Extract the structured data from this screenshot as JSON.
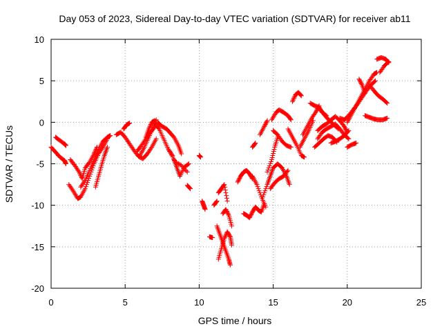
{
  "chart_data": {
    "type": "scatter",
    "title": "Day 053 of 2023, Sidereal Day-to-day VTEC variation (SDTVAR) for receiver ab11",
    "xlabel": "GPS time / hours",
    "ylabel": "SDTVAR / TECUs",
    "xlim": [
      0,
      25
    ],
    "ylim": [
      -20,
      10
    ],
    "xticks": [
      0,
      5,
      10,
      15,
      20,
      25
    ],
    "yticks": [
      -20,
      -15,
      -10,
      -5,
      0,
      5,
      10
    ],
    "grid": true,
    "marker": "+",
    "color": "#ff0000",
    "tracks": [
      [
        [
          0.0,
          -3.0
        ],
        [
          0.3,
          -3.6
        ],
        [
          0.6,
          -4.2
        ],
        [
          0.9,
          -4.6
        ],
        [
          1.0,
          -5.0
        ]
      ],
      [
        [
          0.3,
          -1.8
        ],
        [
          0.6,
          -2.2
        ],
        [
          0.9,
          -2.6
        ],
        [
          1.0,
          -2.8
        ]
      ],
      [
        [
          1.3,
          -4.5
        ],
        [
          1.6,
          -5.2
        ],
        [
          1.9,
          -6.0
        ],
        [
          2.1,
          -6.8
        ],
        [
          2.3,
          -5.5
        ],
        [
          2.6,
          -4.8
        ],
        [
          2.9,
          -3.8
        ],
        [
          3.1,
          -3.0
        ]
      ],
      [
        [
          1.2,
          -7.5
        ],
        [
          1.5,
          -8.3
        ],
        [
          1.8,
          -9.2
        ],
        [
          2.0,
          -9.0
        ],
        [
          2.3,
          -8.0
        ],
        [
          2.6,
          -6.5
        ],
        [
          2.9,
          -5.0
        ],
        [
          3.2,
          -3.8
        ],
        [
          3.5,
          -3.0
        ],
        [
          3.8,
          -2.0
        ]
      ],
      [
        [
          2.0,
          -7.8
        ],
        [
          2.3,
          -7.0
        ],
        [
          2.6,
          -5.8
        ],
        [
          2.9,
          -4.5
        ],
        [
          3.2,
          -3.3
        ],
        [
          3.5,
          -2.3
        ],
        [
          3.8,
          -1.8
        ],
        [
          4.0,
          -1.6
        ]
      ],
      [
        [
          3.0,
          -7.8
        ],
        [
          3.2,
          -6.5
        ],
        [
          3.4,
          -5.2
        ],
        [
          3.6,
          -4.0
        ],
        [
          3.8,
          -3.0
        ]
      ],
      [
        [
          4.4,
          -1.5
        ],
        [
          4.7,
          -1.2
        ],
        [
          5.0,
          -1.8
        ],
        [
          5.3,
          -2.6
        ],
        [
          5.6,
          -3.4
        ],
        [
          5.9,
          -4.1
        ],
        [
          6.2,
          -4.4
        ],
        [
          6.5,
          -3.8
        ],
        [
          6.8,
          -3.0
        ],
        [
          7.1,
          -2.0
        ]
      ],
      [
        [
          4.9,
          -0.8
        ],
        [
          5.1,
          -0.3
        ],
        [
          5.3,
          -0.1
        ]
      ],
      [
        [
          5.8,
          -3.5
        ],
        [
          6.1,
          -2.8
        ],
        [
          6.4,
          -2.0
        ],
        [
          6.7,
          -1.2
        ],
        [
          7.0,
          -0.6
        ]
      ],
      [
        [
          6.0,
          -4.0
        ],
        [
          6.3,
          -3.0
        ],
        [
          6.6,
          -1.8
        ],
        [
          6.9,
          -0.6
        ],
        [
          7.1,
          0.3
        ]
      ],
      [
        [
          6.4,
          -1.8
        ],
        [
          6.6,
          -0.8
        ],
        [
          6.8,
          0.0
        ],
        [
          7.0,
          0.2
        ]
      ],
      [
        [
          7.0,
          -0.2
        ],
        [
          7.3,
          -0.8
        ],
        [
          7.6,
          -2.0
        ],
        [
          7.9,
          -3.2
        ],
        [
          8.2,
          -4.0
        ]
      ],
      [
        [
          7.2,
          0.0
        ],
        [
          7.5,
          -0.5
        ],
        [
          7.8,
          -0.8
        ],
        [
          8.0,
          -1.2
        ],
        [
          8.3,
          -1.8
        ],
        [
          8.6,
          -2.8
        ],
        [
          8.8,
          -3.8
        ]
      ],
      [
        [
          8.3,
          -4.5
        ],
        [
          8.5,
          -5.5
        ],
        [
          8.7,
          -6.5
        ],
        [
          9.0,
          -5.4
        ],
        [
          9.3,
          -5.0
        ]
      ],
      [
        [
          8.0,
          -3.5
        ],
        [
          8.4,
          -4.8
        ],
        [
          8.8,
          -5.2
        ],
        [
          9.2,
          -6.0
        ]
      ],
      [
        [
          9.2,
          -7.6
        ],
        [
          9.4,
          -8.0
        ]
      ],
      [
        [
          10.0,
          -4.0
        ],
        [
          10.1,
          -4.2
        ]
      ],
      [
        [
          10.2,
          -9.5
        ],
        [
          10.3,
          -10.0
        ],
        [
          10.4,
          -10.5
        ]
      ],
      [
        [
          10.7,
          -13.8
        ],
        [
          10.9,
          -13.9
        ]
      ],
      [
        [
          11.0,
          -10.0
        ],
        [
          11.2,
          -9.5
        ]
      ],
      [
        [
          11.3,
          -8.5
        ],
        [
          11.5,
          -8.0
        ],
        [
          11.7,
          -7.5
        ],
        [
          11.9,
          -9.5
        ]
      ],
      [
        [
          11.2,
          -12.5
        ],
        [
          11.4,
          -13.5
        ],
        [
          11.6,
          -14.5
        ],
        [
          11.8,
          -15.5
        ],
        [
          12.0,
          -16.5
        ],
        [
          12.1,
          -17.2
        ]
      ],
      [
        [
          11.3,
          -16.5
        ],
        [
          11.5,
          -15.2
        ],
        [
          11.7,
          -14.0
        ],
        [
          11.9,
          -13.2
        ],
        [
          12.1,
          -13.8
        ],
        [
          12.2,
          -14.8
        ]
      ],
      [
        [
          11.6,
          -11.0
        ],
        [
          11.8,
          -10.5
        ],
        [
          12.0,
          -11.2
        ],
        [
          12.2,
          -12.5
        ]
      ],
      [
        [
          12.6,
          -7.2
        ],
        [
          12.8,
          -6.5
        ],
        [
          13.0,
          -6.0
        ],
        [
          13.2,
          -5.8
        ],
        [
          13.4,
          -6.2
        ],
        [
          13.6,
          -6.8
        ]
      ],
      [
        [
          13.0,
          -11.0
        ],
        [
          13.2,
          -11.2
        ],
        [
          13.4,
          -11.5
        ],
        [
          13.6,
          -10.8
        ],
        [
          13.8,
          -10.2
        ],
        [
          14.0,
          -10.6
        ],
        [
          14.2,
          -10.8
        ],
        [
          14.4,
          -9.8
        ]
      ],
      [
        [
          13.6,
          -6.5
        ],
        [
          13.9,
          -7.5
        ],
        [
          14.2,
          -9.0
        ],
        [
          14.5,
          -10.2
        ]
      ],
      [
        [
          13.6,
          -3.0
        ],
        [
          13.8,
          -2.5
        ]
      ],
      [
        [
          14.1,
          -1.5
        ],
        [
          14.4,
          -0.5
        ],
        [
          14.6,
          0.2
        ]
      ],
      [
        [
          14.3,
          -9.0
        ],
        [
          14.6,
          -7.5
        ],
        [
          14.8,
          -6.5
        ],
        [
          15.0,
          -5.5
        ],
        [
          15.3,
          -5.0
        ],
        [
          15.6,
          -5.5
        ],
        [
          15.9,
          -6.5
        ],
        [
          16.1,
          -7.5
        ]
      ],
      [
        [
          14.8,
          -8.0
        ],
        [
          15.1,
          -7.3
        ],
        [
          15.4,
          -6.8
        ],
        [
          15.7,
          -6.5
        ],
        [
          16.0,
          -5.8
        ]
      ],
      [
        [
          14.6,
          -6.0
        ],
        [
          14.9,
          -4.5
        ],
        [
          15.1,
          -3.0
        ],
        [
          15.3,
          -1.8
        ]
      ],
      [
        [
          14.9,
          0.3
        ],
        [
          15.2,
          1.2
        ],
        [
          15.4,
          1.5
        ],
        [
          15.7,
          1.2
        ],
        [
          16.0,
          0.8
        ],
        [
          16.2,
          0.3
        ]
      ],
      [
        [
          15.0,
          -1.0
        ],
        [
          15.3,
          -1.5
        ],
        [
          15.6,
          -2.3
        ],
        [
          15.9,
          -2.8
        ],
        [
          16.2,
          -3.0
        ]
      ],
      [
        [
          16.3,
          2.5
        ],
        [
          16.5,
          3.3
        ],
        [
          16.7,
          3.6
        ],
        [
          16.9,
          3.2
        ]
      ],
      [
        [
          16.0,
          -0.8
        ],
        [
          16.3,
          -1.8
        ],
        [
          16.6,
          -2.8
        ],
        [
          16.9,
          -4.0
        ],
        [
          17.1,
          -4.2
        ]
      ],
      [
        [
          16.8,
          -3.0
        ],
        [
          17.1,
          -2.0
        ],
        [
          17.4,
          -1.0
        ],
        [
          17.7,
          0.2
        ]
      ],
      [
        [
          17.0,
          -1.5
        ],
        [
          17.3,
          -0.5
        ],
        [
          17.6,
          0.5
        ],
        [
          17.9,
          1.3
        ],
        [
          18.1,
          2.0
        ]
      ],
      [
        [
          17.5,
          2.3
        ],
        [
          17.8,
          2.0
        ],
        [
          18.1,
          1.8
        ],
        [
          18.3,
          1.2
        ],
        [
          18.6,
          0.8
        ]
      ],
      [
        [
          18.0,
          -1.0
        ],
        [
          18.3,
          -0.5
        ],
        [
          18.6,
          -0.2
        ],
        [
          18.9,
          0.3
        ],
        [
          19.2,
          0.7
        ],
        [
          19.5,
          0.2
        ],
        [
          19.8,
          -0.5
        ],
        [
          20.0,
          -1.2
        ]
      ],
      [
        [
          18.0,
          -2.0
        ],
        [
          18.3,
          -1.2
        ],
        [
          18.6,
          -0.8
        ],
        [
          18.9,
          -0.5
        ],
        [
          19.2,
          -0.2
        ],
        [
          19.5,
          -0.8
        ],
        [
          19.8,
          -1.5
        ],
        [
          20.1,
          -2.0
        ]
      ],
      [
        [
          17.8,
          -3.0
        ],
        [
          18.1,
          -2.5
        ],
        [
          18.4,
          -2.0
        ],
        [
          18.7,
          -1.6
        ],
        [
          19.0,
          -1.8
        ],
        [
          19.3,
          -2.4
        ]
      ],
      [
        [
          18.2,
          1.5
        ],
        [
          18.5,
          0.8
        ],
        [
          18.8,
          0.2
        ],
        [
          19.1,
          -0.3
        ],
        [
          19.4,
          -0.8
        ]
      ],
      [
        [
          18.9,
          -2.5
        ],
        [
          19.2,
          -2.3
        ],
        [
          19.5,
          -2.0
        ],
        [
          19.8,
          -1.6
        ],
        [
          20.1,
          -1.0
        ]
      ],
      [
        [
          20.0,
          -3.0
        ],
        [
          20.3,
          -2.7
        ],
        [
          20.6,
          -2.5
        ]
      ],
      [
        [
          19.5,
          0.5
        ],
        [
          19.8,
          0.3
        ],
        [
          20.1,
          0.8
        ],
        [
          20.4,
          1.5
        ],
        [
          20.7,
          2.2
        ],
        [
          21.0,
          3.0
        ],
        [
          21.3,
          3.8
        ],
        [
          21.6,
          4.5
        ],
        [
          21.9,
          5.0
        ]
      ],
      [
        [
          20.0,
          0.0
        ],
        [
          20.3,
          1.0
        ],
        [
          20.6,
          2.0
        ],
        [
          20.9,
          3.0
        ],
        [
          21.2,
          4.0
        ],
        [
          21.5,
          5.0
        ],
        [
          21.8,
          5.8
        ],
        [
          22.0,
          6.0
        ]
      ],
      [
        [
          20.8,
          5.2
        ],
        [
          21.0,
          4.5
        ],
        [
          21.2,
          3.5
        ]
      ],
      [
        [
          21.2,
          0.8
        ],
        [
          21.5,
          0.6
        ],
        [
          21.8,
          0.4
        ],
        [
          22.1,
          0.3
        ],
        [
          22.4,
          0.3
        ],
        [
          22.7,
          0.5
        ]
      ],
      [
        [
          21.5,
          4.5
        ],
        [
          21.8,
          3.8
        ],
        [
          22.1,
          3.2
        ],
        [
          22.4,
          2.8
        ],
        [
          22.7,
          2.3
        ]
      ],
      [
        [
          22.2,
          6.0
        ],
        [
          22.5,
          6.8
        ],
        [
          22.8,
          7.3
        ]
      ],
      [
        [
          22.0,
          7.6
        ],
        [
          22.3,
          7.8
        ],
        [
          22.6,
          7.6
        ],
        [
          22.8,
          7.2
        ]
      ]
    ]
  }
}
